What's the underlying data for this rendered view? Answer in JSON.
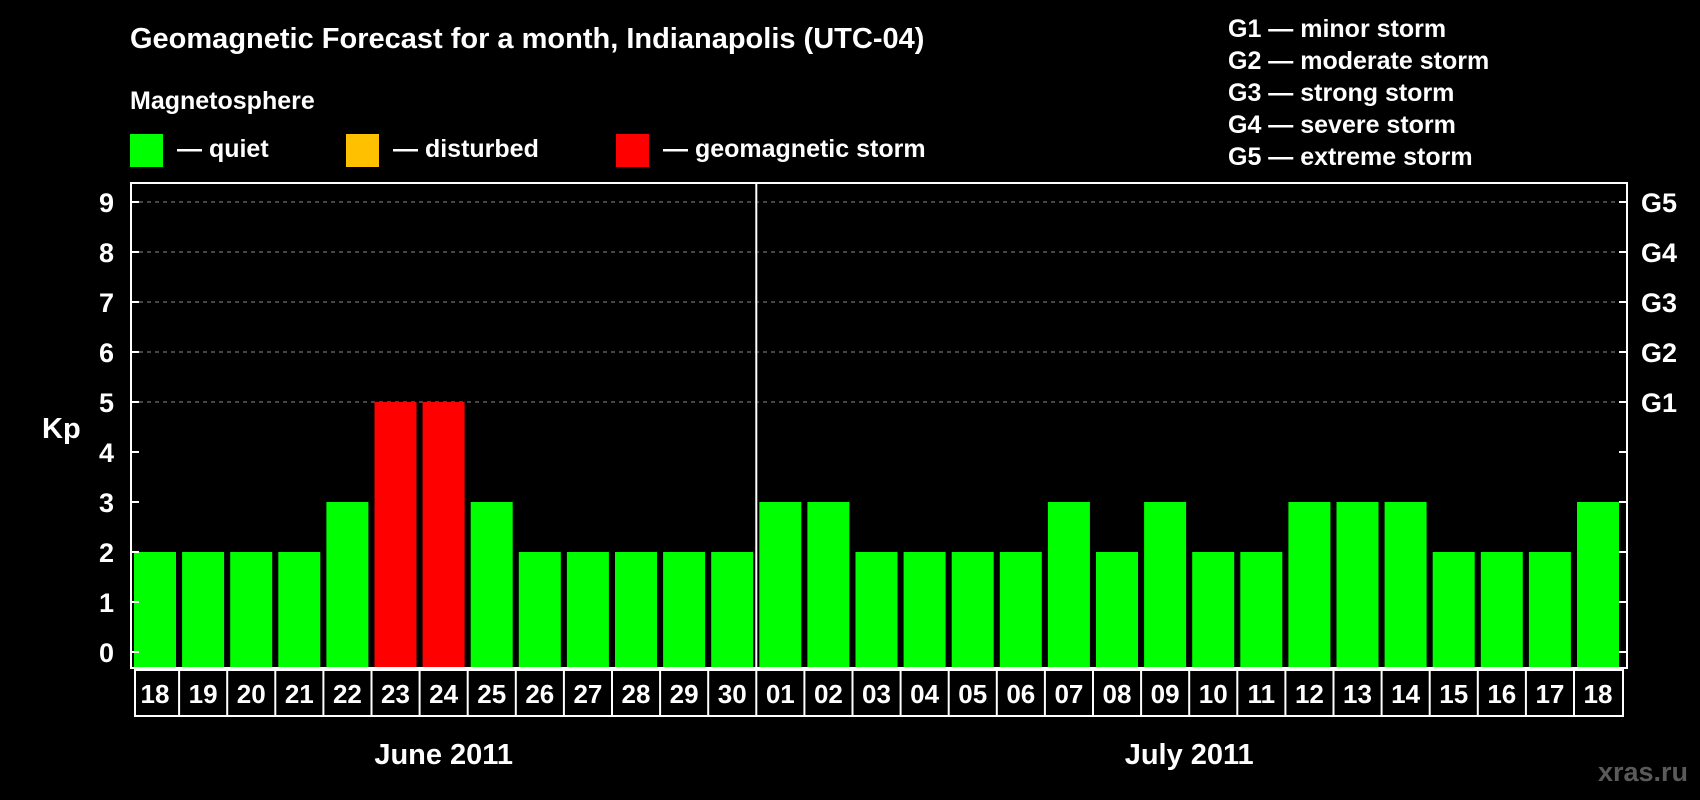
{
  "chart_data": {
    "type": "bar",
    "title": "Geomagnetic Forecast for a month, Indianapolis (UTC-04)",
    "subtitle": "Magnetosphere",
    "ylabel": "Kp",
    "ylim": [
      0,
      9
    ],
    "yticks": [
      "0",
      "1",
      "2",
      "3",
      "4",
      "5",
      "6",
      "7",
      "8",
      "9"
    ],
    "right_ticks": [
      {
        "kp": 5,
        "label": "G1"
      },
      {
        "kp": 6,
        "label": "G2"
      },
      {
        "kp": 7,
        "label": "G3"
      },
      {
        "kp": 8,
        "label": "G4"
      },
      {
        "kp": 9,
        "label": "G5"
      }
    ],
    "grid": true,
    "legend": [
      {
        "label": "— quiet",
        "color": "#00ff00"
      },
      {
        "label": "— disturbed",
        "color": "#ffc000"
      },
      {
        "label": "— geomagnetic storm",
        "color": "#ff0000"
      }
    ],
    "storm_scale": [
      "G1 — minor storm",
      "G2 — moderate storm",
      "G3 — strong storm",
      "G4 — severe storm",
      "G5 — extreme storm"
    ],
    "categories": [
      "18",
      "19",
      "20",
      "21",
      "22",
      "23",
      "24",
      "25",
      "26",
      "27",
      "28",
      "29",
      "30",
      "01",
      "02",
      "03",
      "04",
      "05",
      "06",
      "07",
      "08",
      "09",
      "10",
      "11",
      "12",
      "13",
      "14",
      "15",
      "16",
      "17",
      "18"
    ],
    "values": [
      2,
      2,
      2,
      2,
      3,
      5,
      5,
      3,
      2,
      2,
      2,
      2,
      2,
      3,
      3,
      2,
      2,
      2,
      2,
      3,
      2,
      3,
      2,
      2,
      3,
      3,
      3,
      2,
      2,
      2,
      3
    ],
    "colors": [
      "#00ff00",
      "#00ff00",
      "#00ff00",
      "#00ff00",
      "#00ff00",
      "#ff0000",
      "#ff0000",
      "#00ff00",
      "#00ff00",
      "#00ff00",
      "#00ff00",
      "#00ff00",
      "#00ff00",
      "#00ff00",
      "#00ff00",
      "#00ff00",
      "#00ff00",
      "#00ff00",
      "#00ff00",
      "#00ff00",
      "#00ff00",
      "#00ff00",
      "#00ff00",
      "#00ff00",
      "#00ff00",
      "#00ff00",
      "#00ff00",
      "#00ff00",
      "#00ff00",
      "#00ff00",
      "#00ff00"
    ],
    "groups": [
      {
        "label": "June 2011",
        "count": 13
      },
      {
        "label": "July 2011",
        "count": 18
      }
    ]
  },
  "watermark": "xras.ru"
}
